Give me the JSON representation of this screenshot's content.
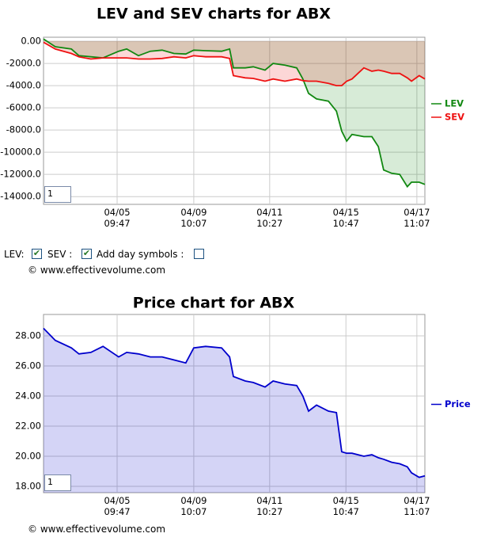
{
  "chart_data": [
    {
      "type": "line",
      "title": "LEV and SEV charts for ABX",
      "x": [
        0,
        3.1,
        7.3,
        9.3,
        12.4,
        15.6,
        19.7,
        21.8,
        24.9,
        28.0,
        31.1,
        34.2,
        37.3,
        39.4,
        42.5,
        46.7,
        48.8,
        49.8,
        52.9,
        55.0,
        58.1,
        60.2,
        63.3,
        66.4,
        68.0,
        69.5,
        71.6,
        74.7,
        76.8,
        78.2,
        79.5,
        80.9,
        84.0,
        86.1,
        87.8,
        89.2,
        91.3,
        93.4,
        95.4,
        96.5,
        98.5,
        100
      ],
      "series": [
        {
          "name": "LEV",
          "color": "#118811",
          "values": [
            200,
            -500,
            -700,
            -1300,
            -1400,
            -1500,
            -900,
            -700,
            -1300,
            -900,
            -800,
            -1100,
            -1150,
            -800,
            -850,
            -900,
            -700,
            -2400,
            -2400,
            -2300,
            -2600,
            -2000,
            -2150,
            -2400,
            -3400,
            -4700,
            -5200,
            -5400,
            -6300,
            -8100,
            -9000,
            -8400,
            -8600,
            -8600,
            -9500,
            -11600,
            -11900,
            -12000,
            -13100,
            -12700,
            -12700,
            -12900
          ]
        },
        {
          "name": "SEV",
          "color": "#ee1111",
          "values": [
            -100,
            -700,
            -1100,
            -1400,
            -1600,
            -1500,
            -1500,
            -1500,
            -1600,
            -1600,
            -1550,
            -1400,
            -1500,
            -1300,
            -1400,
            -1400,
            -1550,
            -3100,
            -3300,
            -3350,
            -3600,
            -3400,
            -3600,
            -3400,
            -3550,
            -3600,
            -3600,
            -3800,
            -4000,
            -4000,
            -3600,
            -3400,
            -2400,
            -2700,
            -2600,
            -2700,
            -2900,
            -2900,
            -3300,
            -3600,
            -3100,
            -3400
          ]
        }
      ],
      "xlim": [
        0,
        100
      ],
      "xticks": [
        {
          "value": 19.3,
          "label": "04/05\n09:47"
        },
        {
          "value": 39.4,
          "label": "04/09\n10:07"
        },
        {
          "value": 59.3,
          "label": "04/11\n10:27"
        },
        {
          "value": 79.3,
          "label": "04/15\n10:47"
        },
        {
          "value": 97.9,
          "label": "04/17\n11:07"
        }
      ],
      "ylim": [
        -14700,
        360
      ],
      "yticks": [
        {
          "value": 0,
          "label": "0.00"
        },
        {
          "value": -2000,
          "label": "-2000.0"
        },
        {
          "value": -4000,
          "label": "-4000.0"
        },
        {
          "value": -6000,
          "label": "-6000.0"
        },
        {
          "value": -8000,
          "label": "-8000.0"
        },
        {
          "value": -10000,
          "label": "-10000.0"
        },
        {
          "value": -12000,
          "label": "-12000.0"
        },
        {
          "value": -14000,
          "label": "-14000.0"
        }
      ],
      "grid": true,
      "input": "1"
    },
    {
      "type": "line",
      "title": "Price chart for ABX",
      "x": [
        0,
        3.1,
        7.3,
        9.3,
        12.4,
        15.6,
        19.7,
        21.8,
        24.9,
        28.0,
        31.1,
        34.2,
        37.3,
        39.4,
        42.5,
        46.7,
        48.8,
        49.8,
        52.9,
        55.0,
        58.1,
        60.2,
        63.3,
        66.4,
        68.0,
        69.5,
        71.6,
        74.7,
        76.8,
        78.2,
        79.5,
        80.9,
        84.0,
        86.1,
        87.8,
        89.2,
        91.3,
        93.4,
        95.4,
        96.5,
        98.5,
        100
      ],
      "series": [
        {
          "name": "Price",
          "color": "#0000cc",
          "values": [
            28.5,
            27.7,
            27.2,
            26.8,
            26.9,
            27.3,
            26.6,
            26.9,
            26.8,
            26.6,
            26.6,
            26.4,
            26.2,
            27.2,
            27.3,
            27.2,
            26.6,
            25.3,
            25.0,
            24.9,
            24.6,
            25.0,
            24.8,
            24.7,
            24.0,
            23.0,
            23.4,
            23.0,
            22.9,
            20.3,
            20.2,
            20.2,
            20.0,
            20.1,
            19.9,
            19.8,
            19.6,
            19.5,
            19.3,
            18.9,
            18.6,
            18.7
          ]
        }
      ],
      "xlim": [
        0,
        100
      ],
      "xticks": [
        {
          "value": 19.3,
          "label": "04/05\n09:47"
        },
        {
          "value": 39.4,
          "label": "04/09\n10:07"
        },
        {
          "value": 59.3,
          "label": "04/11\n10:27"
        },
        {
          "value": 79.3,
          "label": "04/15\n10:47"
        },
        {
          "value": 97.9,
          "label": "04/17\n11:07"
        }
      ],
      "ylim": [
        17.58,
        29.42
      ],
      "yticks": [
        {
          "value": 28,
          "label": "28.00"
        },
        {
          "value": 26,
          "label": "26.00"
        },
        {
          "value": 24,
          "label": "24.00"
        },
        {
          "value": 22,
          "label": "22.00"
        },
        {
          "value": 20,
          "label": "20.00"
        },
        {
          "value": 18,
          "label": "18.00"
        }
      ],
      "grid": true,
      "input": "1"
    }
  ],
  "controls": {
    "lev": "LEV:",
    "sev": "SEV :",
    "day_symbols": "Add day symbols :"
  },
  "copyright": "© www.effectivevolume.com"
}
